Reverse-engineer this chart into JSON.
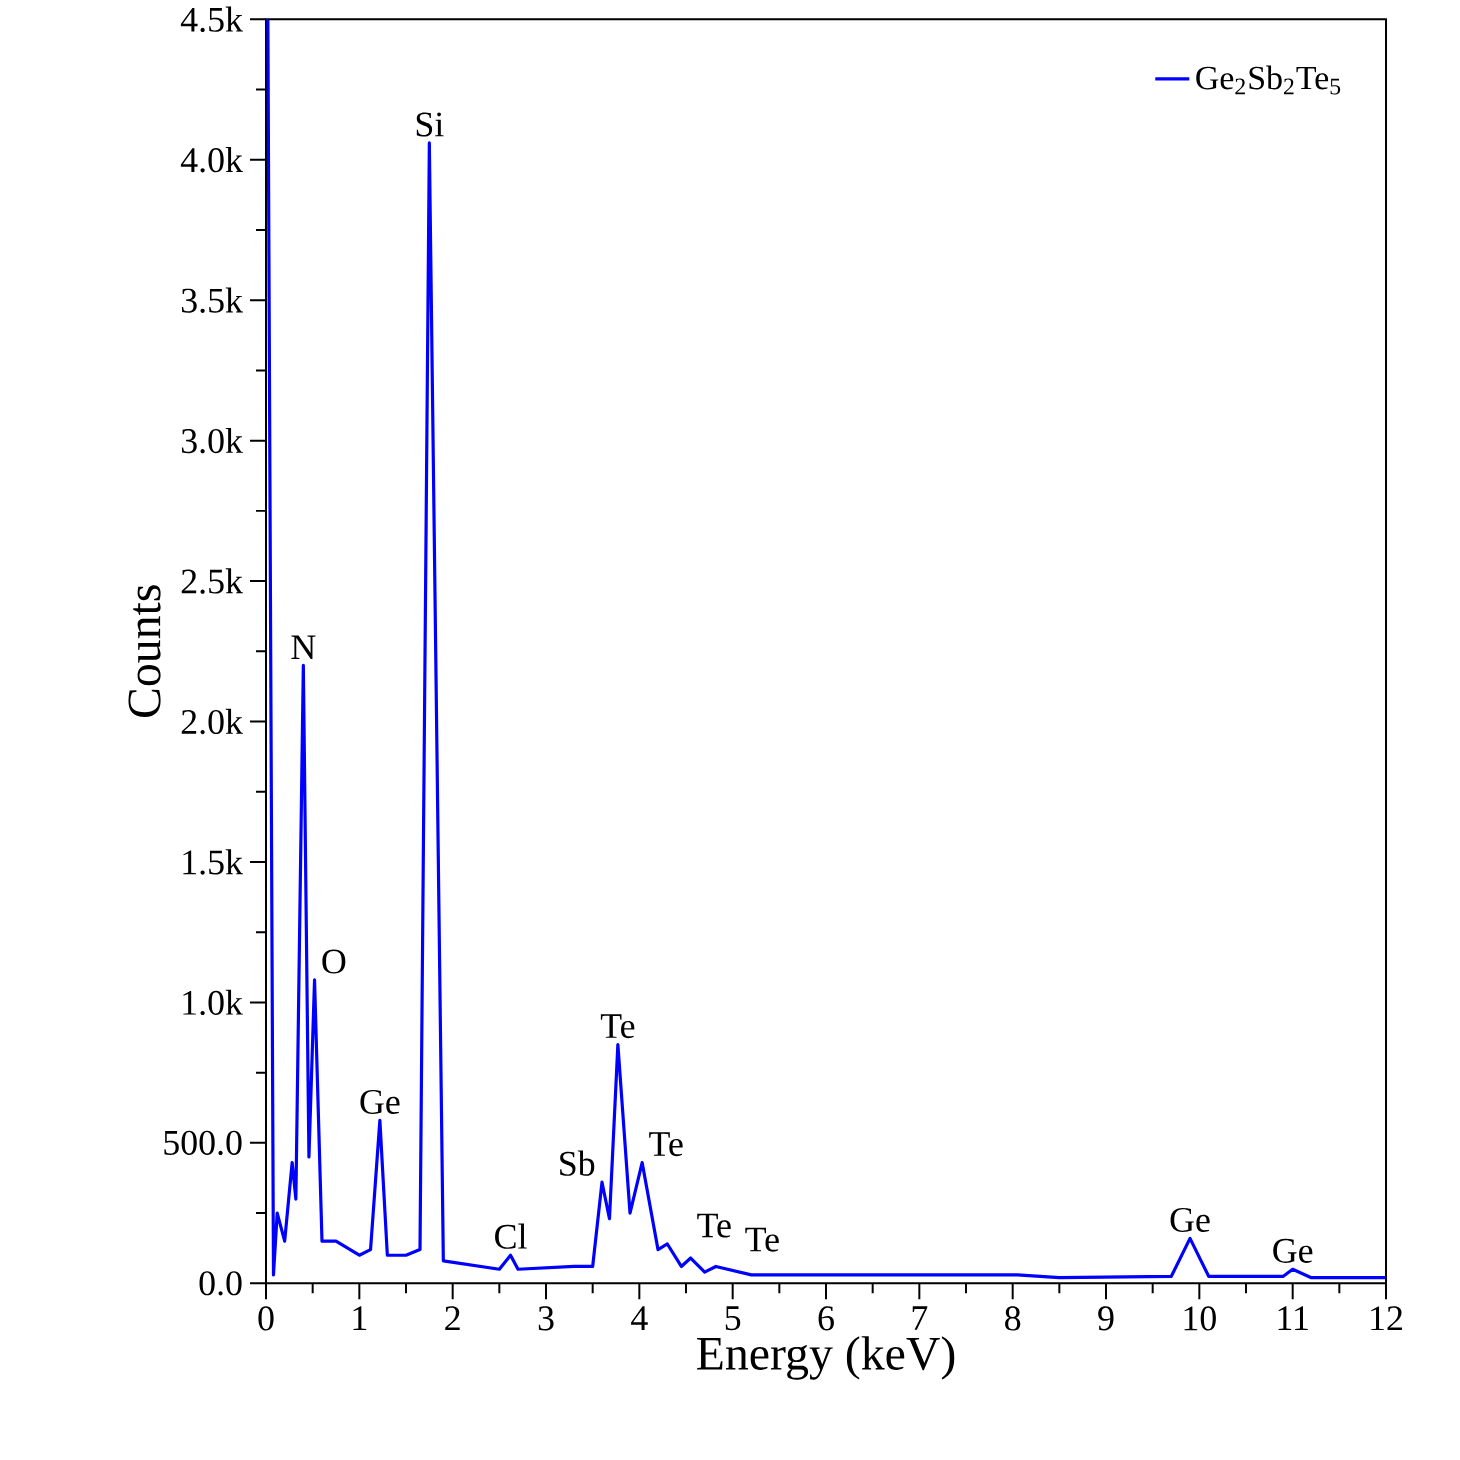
{
  "chart_data": {
    "type": "line",
    "xlabel": "Energy (keV)",
    "ylabel": "Counts",
    "xlim": [
      0,
      12
    ],
    "xticks": [
      0,
      1,
      2,
      3,
      4,
      5,
      6,
      7,
      8,
      9,
      10,
      11,
      12
    ],
    "ylim": [
      0,
      4500
    ],
    "yticks": [
      {
        "value": 0,
        "label": "0.0"
      },
      {
        "value": 500,
        "label": "500.0"
      },
      {
        "value": 1000,
        "label": "1.0k"
      },
      {
        "value": 1500,
        "label": "1.5k"
      },
      {
        "value": 2000,
        "label": "2.0k"
      },
      {
        "value": 2500,
        "label": "2.5k"
      },
      {
        "value": 3000,
        "label": "3.0k"
      },
      {
        "value": 3500,
        "label": "3.5k"
      },
      {
        "value": 4000,
        "label": "4.0k"
      },
      {
        "value": 4500,
        "label": "4.5k"
      }
    ],
    "legend": "top right",
    "grid": false,
    "marker": "none",
    "line_style": "solid",
    "series": [
      {
        "name": "Ge$_{2}$Sb$_{2}$Te$_{5}$",
        "color": "#0000ff",
        "x": [
          0.02,
          0.08,
          0.12,
          0.2,
          0.28,
          0.32,
          0.4,
          0.46,
          0.52,
          0.6,
          0.75,
          1.0,
          1.12,
          1.22,
          1.3,
          1.5,
          1.65,
          1.75,
          1.9,
          2.5,
          2.62,
          2.7,
          3.3,
          3.5,
          3.6,
          3.68,
          3.77,
          3.9,
          4.03,
          4.2,
          4.3,
          4.45,
          4.55,
          4.7,
          4.82,
          5.2,
          7.0,
          8.05,
          8.5,
          9.7,
          9.9,
          10.1,
          10.9,
          11.0,
          11.2,
          12.0
        ],
        "values": [
          4500,
          30,
          250,
          150,
          430,
          300,
          2200,
          450,
          1080,
          150,
          150,
          100,
          120,
          580,
          100,
          100,
          120,
          4060,
          80,
          50,
          100,
          50,
          60,
          60,
          360,
          230,
          850,
          250,
          430,
          120,
          140,
          60,
          90,
          40,
          60,
          30,
          30,
          30,
          20,
          25,
          160,
          25,
          25,
          50,
          20,
          20
        ]
      }
    ],
    "annotations": [
      {
        "text": "N",
        "x": 0.4,
        "y": 2200
      },
      {
        "text": "O",
        "x": 0.52,
        "y": 1080
      },
      {
        "text": "Ge",
        "x": 1.22,
        "y": 580
      },
      {
        "text": "Si",
        "x": 1.75,
        "y": 4060
      },
      {
        "text": "Cl",
        "x": 2.62,
        "y": 100
      },
      {
        "text": "Sb",
        "x": 3.6,
        "y": 360
      },
      {
        "text": "Te",
        "x": 3.77,
        "y": 850
      },
      {
        "text": "Te",
        "x": 4.03,
        "y": 430
      },
      {
        "text": "Te",
        "x": 4.3,
        "y": 140
      },
      {
        "text": "Te",
        "x": 4.55,
        "y": 90
      },
      {
        "text": "Ge",
        "x": 9.9,
        "y": 160
      },
      {
        "text": "Ge",
        "x": 11.0,
        "y": 50
      }
    ]
  }
}
